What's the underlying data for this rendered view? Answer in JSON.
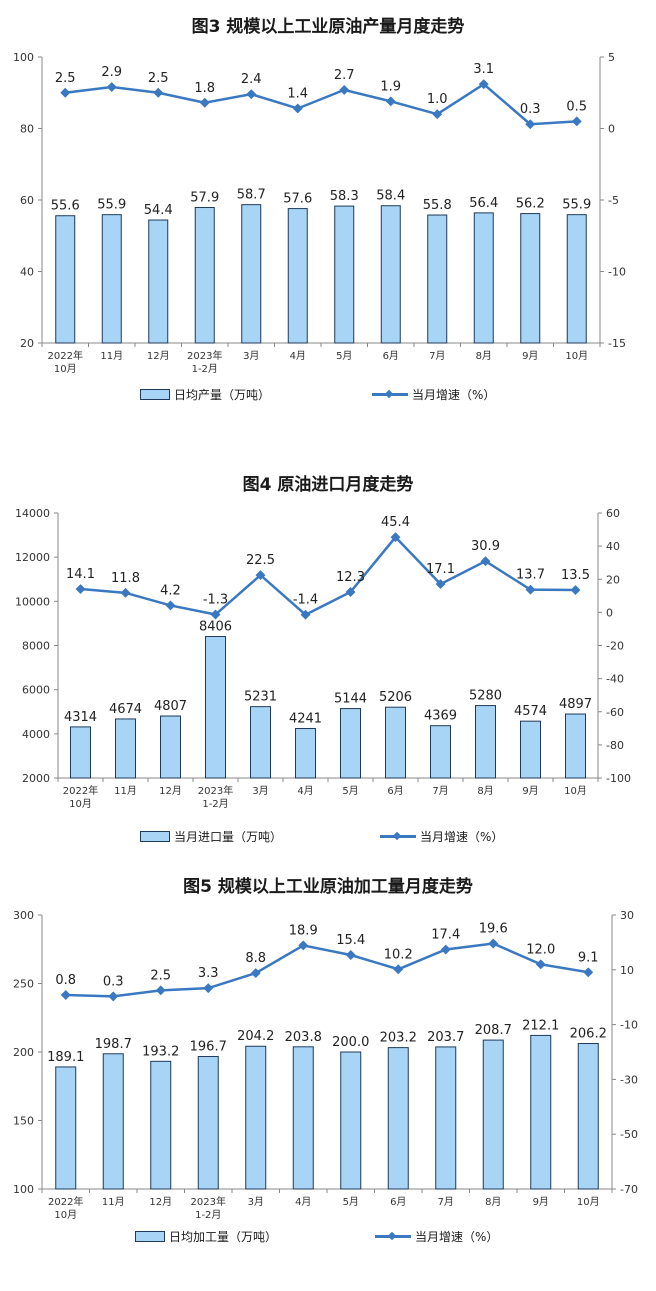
{
  "colors": {
    "bar_fill": "#a8d4f5",
    "bar_stroke": "#1f3a5a",
    "line": "#3a78c2",
    "axis": "#888888"
  },
  "chart_data": [
    {
      "type": "bar+line",
      "title": "图3  规模以上工业原油产量月度走势",
      "categories": [
        [
          "2022年",
          "10月"
        ],
        [
          "11月"
        ],
        [
          "12月"
        ],
        [
          "2023年",
          "1-2月"
        ],
        [
          "3月"
        ],
        [
          "4月"
        ],
        [
          "5月"
        ],
        [
          "6月"
        ],
        [
          "7月"
        ],
        [
          "8月"
        ],
        [
          "9月"
        ],
        [
          "10月"
        ]
      ],
      "series": [
        {
          "name": "日均产量（万吨）",
          "type": "bar",
          "axis": "left",
          "values": [
            55.6,
            55.9,
            54.4,
            57.9,
            58.7,
            57.6,
            58.3,
            58.4,
            55.8,
            56.4,
            56.2,
            55.9
          ],
          "labels": [
            "55.6",
            "55.9",
            "54.4",
            "57.9",
            "58.7",
            "57.6",
            "58.3",
            "58.4",
            "55.8",
            "56.4",
            "56.2",
            "55.9"
          ]
        },
        {
          "name": "当月增速（%）",
          "type": "line",
          "axis": "right",
          "values": [
            2.5,
            2.9,
            2.5,
            1.8,
            2.4,
            1.4,
            2.7,
            1.9,
            1.0,
            3.1,
            0.3,
            0.5
          ],
          "labels": [
            "2.5",
            "2.9",
            "2.5",
            "1.8",
            "2.4",
            "1.4",
            "2.7",
            "1.9",
            "1.0",
            "3.1",
            "0.3",
            "0.5"
          ]
        }
      ],
      "left_ylim": [
        20,
        100
      ],
      "left_ticks": [
        "20",
        "40",
        "60",
        "80",
        "100"
      ],
      "right_ylim": [
        -15,
        5
      ],
      "right_ticks": [
        "-15",
        "-10",
        "-5",
        "0",
        "5"
      ],
      "legend_position": "bottom"
    },
    {
      "type": "bar+line",
      "title": "图4  原油进口月度走势",
      "categories": [
        [
          "2022年",
          "10月"
        ],
        [
          "11月"
        ],
        [
          "12月"
        ],
        [
          "2023年",
          "1-2月"
        ],
        [
          "3月"
        ],
        [
          "4月"
        ],
        [
          "5月"
        ],
        [
          "6月"
        ],
        [
          "7月"
        ],
        [
          "8月"
        ],
        [
          "9月"
        ],
        [
          "10月"
        ]
      ],
      "series": [
        {
          "name": "当月进口量（万吨）",
          "type": "bar",
          "axis": "left",
          "values": [
            4314,
            4674,
            4807,
            8406,
            5231,
            4241,
            5144,
            5206,
            4369,
            5280,
            4574,
            4897
          ],
          "labels": [
            "4314",
            "4674",
            "4807",
            "8406",
            "5231",
            "4241",
            "5144",
            "5206",
            "4369",
            "5280",
            "4574",
            "4897"
          ]
        },
        {
          "name": "当月增速（%）",
          "type": "line",
          "axis": "right",
          "values": [
            14.1,
            11.8,
            4.2,
            -1.3,
            22.5,
            -1.4,
            12.3,
            45.4,
            17.1,
            30.9,
            13.7,
            13.5
          ],
          "labels": [
            "14.1",
            "11.8",
            "4.2",
            "-1.3",
            "22.5",
            "-1.4",
            "12.3",
            "45.4",
            "17.1",
            "30.9",
            "13.7",
            "13.5"
          ]
        }
      ],
      "left_ylim": [
        2000,
        14000
      ],
      "left_ticks": [
        "2000",
        "4000",
        "6000",
        "8000",
        "10000",
        "12000",
        "14000"
      ],
      "right_ylim": [
        -100,
        60
      ],
      "right_ticks": [
        "-100",
        "-80",
        "-60",
        "-40",
        "-20",
        "0",
        "20",
        "40",
        "60"
      ],
      "legend_position": "bottom"
    },
    {
      "type": "bar+line",
      "title": "图5  规模以上工业原油加工量月度走势",
      "categories": [
        [
          "2022年",
          "10月"
        ],
        [
          "11月"
        ],
        [
          "12月"
        ],
        [
          "2023年",
          "1-2月"
        ],
        [
          "3月"
        ],
        [
          "4月"
        ],
        [
          "5月"
        ],
        [
          "6月"
        ],
        [
          "7月"
        ],
        [
          "8月"
        ],
        [
          "9月"
        ],
        [
          "10月"
        ]
      ],
      "series": [
        {
          "name": "日均加工量（万吨）",
          "type": "bar",
          "axis": "left",
          "values": [
            189.1,
            198.7,
            193.2,
            196.7,
            204.2,
            203.8,
            200.0,
            203.2,
            203.7,
            208.7,
            212.1,
            206.2
          ],
          "labels": [
            "189.1",
            "198.7",
            "193.2",
            "196.7",
            "204.2",
            "203.8",
            "200.0",
            "203.2",
            "203.7",
            "208.7",
            "212.1",
            "206.2"
          ]
        },
        {
          "name": "当月增速（%）",
          "type": "line",
          "axis": "right",
          "values": [
            0.8,
            0.3,
            2.5,
            3.3,
            8.8,
            18.9,
            15.4,
            10.2,
            17.4,
            19.6,
            12.0,
            9.1
          ],
          "labels": [
            "0.8",
            "0.3",
            "2.5",
            "3.3",
            "8.8",
            "18.9",
            "15.4",
            "10.2",
            "17.4",
            "19.6",
            "12.0",
            "9.1"
          ]
        }
      ],
      "left_ylim": [
        100,
        300
      ],
      "left_ticks": [
        "100",
        "150",
        "200",
        "250",
        "300"
      ],
      "right_ylim": [
        -70,
        30
      ],
      "right_ticks": [
        "-70",
        "-50",
        "-30",
        "-10",
        "10",
        "30"
      ],
      "legend_position": "bottom"
    }
  ]
}
